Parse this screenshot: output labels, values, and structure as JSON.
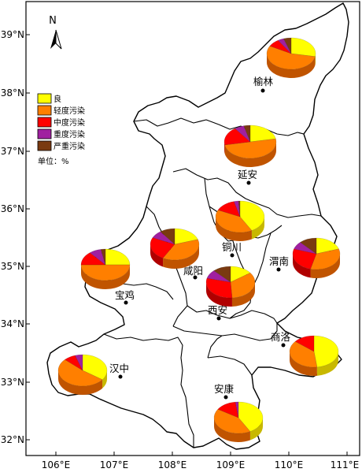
{
  "map": {
    "lat_labels": [
      "39°N",
      "38°N",
      "37°N",
      "36°N",
      "35°N",
      "34°N",
      "33°N",
      "32°N"
    ],
    "lon_labels": [
      "106°E",
      "107°E",
      "108°E",
      "109°E",
      "110°E",
      "111°E"
    ],
    "north_label": "N",
    "unit_label": "单位：%"
  },
  "legend": {
    "items": [
      {
        "label": "良",
        "color": "#ffff00"
      },
      {
        "label": "轻度污染",
        "color": "#ff7f00"
      },
      {
        "label": "中度污染",
        "color": "#ff0000"
      },
      {
        "label": "重度污染",
        "color": "#a020a0"
      },
      {
        "label": "严重污染",
        "color": "#7a3a10"
      }
    ]
  },
  "cities": [
    {
      "name": "榆林",
      "values": [
        28,
        55,
        8,
        4,
        5
      ]
    },
    {
      "name": "延安",
      "values": [
        22,
        50,
        18,
        6,
        4
      ]
    },
    {
      "name": "铜川",
      "values": [
        42,
        40,
        14,
        3,
        1
      ]
    },
    {
      "name": "咸阳",
      "values": [
        20,
        38,
        24,
        8,
        10
      ]
    },
    {
      "name": "西安",
      "values": [
        15,
        34,
        30,
        9,
        12
      ]
    },
    {
      "name": "渭南",
      "values": [
        20,
        34,
        26,
        8,
        12
      ]
    },
    {
      "name": "宝鸡",
      "values": [
        25,
        50,
        14,
        8,
        3
      ]
    },
    {
      "name": "汉中",
      "values": [
        35,
        52,
        8,
        5,
        0
      ]
    },
    {
      "name": "安康",
      "values": [
        42,
        42,
        14,
        2,
        0
      ]
    },
    {
      "name": "商洛",
      "values": [
        48,
        38,
        14,
        0,
        0
      ]
    }
  ]
}
